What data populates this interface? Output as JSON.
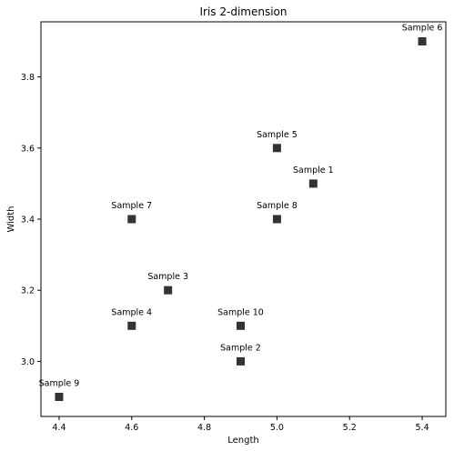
{
  "chart_data": {
    "type": "scatter",
    "title": "Iris 2-dimension",
    "xlabel": "Length",
    "ylabel": "Width",
    "xlim": [
      4.35,
      5.465
    ],
    "ylim": [
      2.845,
      3.955
    ],
    "xticks": [
      "4.4",
      "4.6",
      "4.8",
      "5.0",
      "5.2",
      "5.4"
    ],
    "yticks": [
      "3.0",
      "3.2",
      "3.4",
      "3.6",
      "3.8"
    ],
    "marker": "square",
    "marker_color": "#333333",
    "grid": false,
    "points": [
      {
        "label": "Sample 1",
        "x": 5.1,
        "y": 3.5
      },
      {
        "label": "Sample 2",
        "x": 4.9,
        "y": 3.0
      },
      {
        "label": "Sample 3",
        "x": 4.7,
        "y": 3.2
      },
      {
        "label": "Sample 4",
        "x": 4.6,
        "y": 3.1
      },
      {
        "label": "Sample 5",
        "x": 5.0,
        "y": 3.6
      },
      {
        "label": "Sample 6",
        "x": 5.4,
        "y": 3.9
      },
      {
        "label": "Sample 7",
        "x": 4.6,
        "y": 3.4
      },
      {
        "label": "Sample 8",
        "x": 5.0,
        "y": 3.4
      },
      {
        "label": "Sample 9",
        "x": 4.4,
        "y": 2.9
      },
      {
        "label": "Sample 10",
        "x": 4.9,
        "y": 3.1
      }
    ]
  }
}
